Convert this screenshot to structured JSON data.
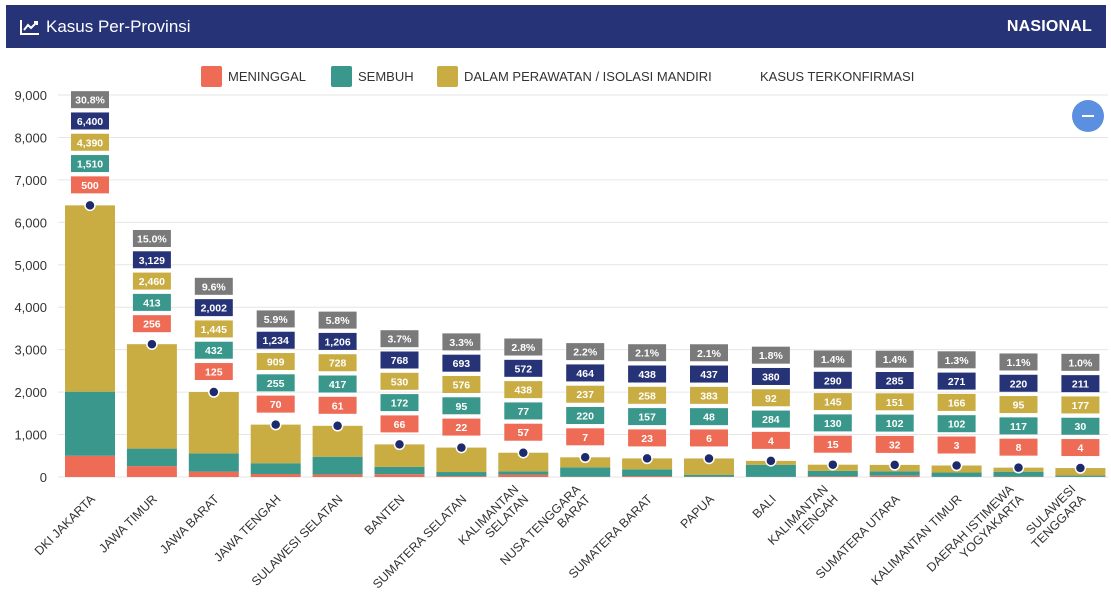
{
  "header": {
    "title": "Kasus Per-Provinsi",
    "right_label": "NASIONAL",
    "icon": "line-chart-icon"
  },
  "colors": {
    "header_bg": "#263377",
    "meninggal": "#ee6c56",
    "sembuh": "#3a978c",
    "perawatan": "#c9ac42",
    "terkonfirmasi": "#263377",
    "percent": "#7a7a7a",
    "marker": "#1d2a6b",
    "collapse_button": "#5b8fdf"
  },
  "controls": {
    "collapse_icon": "minus-icon"
  },
  "chart_data": {
    "type": "bar",
    "stacked": true,
    "ylim": [
      0,
      9000
    ],
    "yticks": [
      "0",
      "1,000",
      "2,000",
      "3,000",
      "4,000",
      "5,000",
      "6,000",
      "7,000",
      "8,000",
      "9,000"
    ],
    "grid": true,
    "legend_position": "top-center",
    "categories": [
      "DKI JAKARTA",
      "JAWA TIMUR",
      "JAWA BARAT",
      "JAWA TENGAH",
      "SULAWESI SELATAN",
      "BANTEN",
      "SUMATERA SELATAN",
      "KALIMANTAN SELATAN",
      "NUSA TENGGARA BARAT",
      "SUMATERA BARAT",
      "PAPUA",
      "BALI",
      "KALIMANTAN TENGAH",
      "SUMATERA UTARA",
      "KALIMANTAN TIMUR",
      "DAERAH ISTIMEWA YOGYAKARTA",
      "SULAWESI TENGGARA"
    ],
    "category_lines": [
      [
        "DKI JAKARTA"
      ],
      [
        "JAWA TIMUR"
      ],
      [
        "JAWA BARAT"
      ],
      [
        "JAWA TENGAH"
      ],
      [
        "SULAWESI SELATAN"
      ],
      [
        "BANTEN"
      ],
      [
        "SUMATERA SELATAN"
      ],
      [
        "KALIMANTAN",
        "SELATAN"
      ],
      [
        "NUSA TENGGARA",
        "BARAT"
      ],
      [
        "SUMATERA BARAT"
      ],
      [
        "PAPUA"
      ],
      [
        "BALI"
      ],
      [
        "KALIMANTAN",
        "TENGAH"
      ],
      [
        "SUMATERA UTARA"
      ],
      [
        "KALIMANTAN TIMUR"
      ],
      [
        "DAERAH ISTIMEWA",
        "YOGYAKARTA"
      ],
      [
        "SULAWESI",
        "TENGGARA"
      ]
    ],
    "series": [
      {
        "name": "MENINGGAL",
        "color": "#ee6c56",
        "values": [
          500,
          256,
          125,
          70,
          61,
          66,
          22,
          57,
          7,
          23,
          6,
          4,
          15,
          32,
          3,
          8,
          4
        ],
        "labels": [
          "500",
          "256",
          "125",
          "70",
          "61",
          "66",
          "22",
          "57",
          "7",
          "23",
          "6",
          "4",
          "15",
          "32",
          "3",
          "8",
          "4"
        ]
      },
      {
        "name": "SEMBUH",
        "color": "#3a978c",
        "values": [
          1510,
          413,
          432,
          255,
          417,
          172,
          95,
          77,
          220,
          157,
          48,
          284,
          130,
          102,
          102,
          117,
          30
        ],
        "labels": [
          "1,510",
          "413",
          "432",
          "255",
          "417",
          "172",
          "95",
          "77",
          "220",
          "157",
          "48",
          "284",
          "130",
          "102",
          "102",
          "117",
          "30"
        ]
      },
      {
        "name": "DALAM PERAWATAN / ISOLASI MANDIRI",
        "color": "#c9ac42",
        "values": [
          4390,
          2460,
          1445,
          909,
          728,
          530,
          576,
          438,
          237,
          258,
          383,
          92,
          145,
          151,
          166,
          95,
          177
        ],
        "labels": [
          "4,390",
          "2,460",
          "1,445",
          "909",
          "728",
          "530",
          "576",
          "438",
          "237",
          "258",
          "383",
          "92",
          "145",
          "151",
          "166",
          "95",
          "177"
        ]
      },
      {
        "name": "KASUS TERKONFIRMASI",
        "type": "marker",
        "color": "#1d2a6b",
        "values": [
          6400,
          3129,
          2002,
          1234,
          1206,
          768,
          693,
          572,
          464,
          438,
          437,
          380,
          290,
          285,
          271,
          220,
          211
        ],
        "labels": [
          "6,400",
          "3,129",
          "2,002",
          "1,234",
          "1,206",
          "768",
          "693",
          "572",
          "464",
          "438",
          "437",
          "380",
          "290",
          "285",
          "271",
          "220",
          "211"
        ]
      }
    ],
    "percent_labels": [
      "30.8%",
      "15.0%",
      "9.6%",
      "5.9%",
      "5.8%",
      "3.7%",
      "3.3%",
      "2.8%",
      "2.2%",
      "2.1%",
      "2.1%",
      "1.8%",
      "1.4%",
      "1.4%",
      "1.3%",
      "1.1%",
      "1.0%"
    ]
  }
}
